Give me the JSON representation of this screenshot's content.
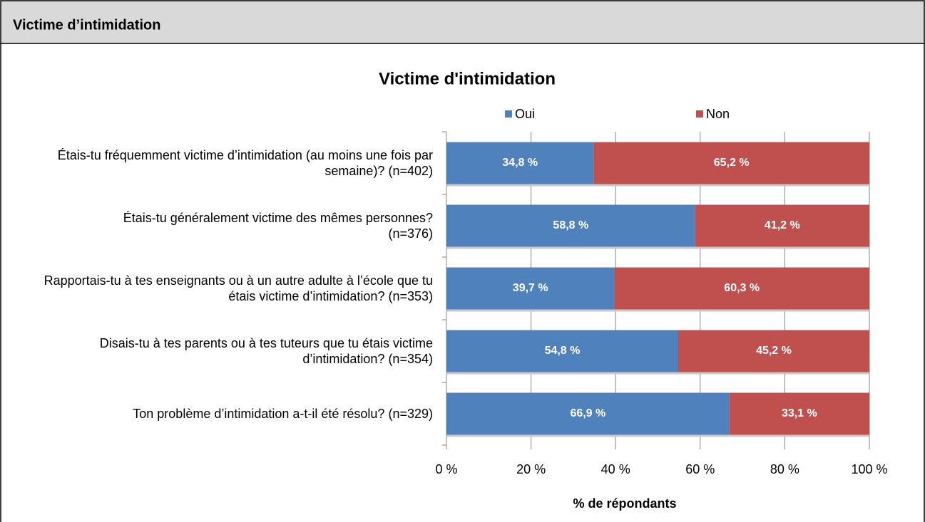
{
  "header": {
    "title": "Victime d’intimidation"
  },
  "chart_data": {
    "type": "stacked_barh",
    "title": "Victime d'intimidation",
    "categories": [
      "Étais-tu fréquemment victime d’intimidation (au moins une fois par semaine)? (n=402)",
      "Étais-tu généralement victime des mêmes personnes? (n=376)",
      "Rapportais-tu à tes enseignants ou à un autre adulte à l’école que tu étais victime d’intimidation? (n=353)",
      "Disais-tu à tes parents ou à tes tuteurs que tu étais victime d’intimidation? (n=354)",
      "Ton problème d’intimidation a-t-il été résolu? (n=329)"
    ],
    "series": [
      {
        "name": "Oui",
        "color": "#4f81bd",
        "values": [
          34.8,
          58.8,
          39.7,
          54.8,
          66.9
        ],
        "value_labels": [
          "34,8 %",
          "58,8 %",
          "39,7 %",
          "54,8 %",
          "66,9 %"
        ]
      },
      {
        "name": "Non",
        "color": "#c0504d",
        "values": [
          65.2,
          41.2,
          60.3,
          45.2,
          33.1
        ],
        "value_labels": [
          "65,2 %",
          "41,2 %",
          "60,3 %",
          "45,2 %",
          "33,1 %"
        ]
      }
    ],
    "xlabel": "% de répondants",
    "xlim": [
      0,
      100
    ],
    "xticks": [
      {
        "value": 0,
        "label": "0 %"
      },
      {
        "value": 20,
        "label": "20 %"
      },
      {
        "value": 40,
        "label": "40 %"
      },
      {
        "value": 60,
        "label": "60 %"
      },
      {
        "value": 80,
        "label": "80 %"
      },
      {
        "value": 100,
        "label": "100 %"
      }
    ],
    "grid": true,
    "legend": "top"
  }
}
